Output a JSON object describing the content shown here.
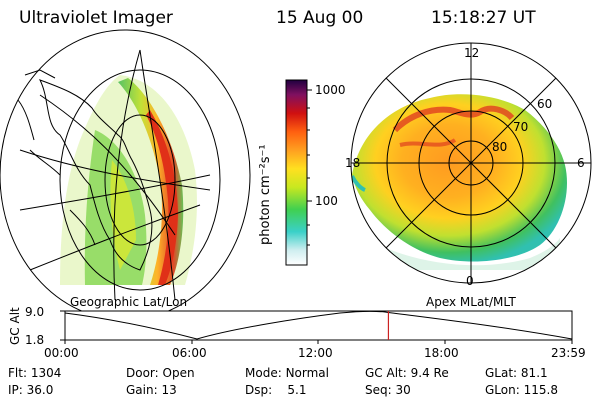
{
  "header": {
    "instrument": "Ultraviolet Imager",
    "date": "15 Aug 00",
    "time": "15:18:27 UT"
  },
  "colorbar": {
    "label": "photon cm⁻²s⁻¹",
    "ticks": [
      "1000",
      "100"
    ]
  },
  "left_panel": {
    "caption": "Geographic Lat/Lon"
  },
  "right_panel": {
    "caption": "Apex MLat/MLT",
    "mlt_labels": [
      "12",
      "18",
      "6",
      "0"
    ],
    "lat_labels": [
      "60",
      "70",
      "80"
    ]
  },
  "altitude_plot": {
    "ylabel": "GC Alt",
    "yticks": [
      "9.0",
      "1.8"
    ],
    "xticks": [
      "00:00",
      "06:00",
      "12:00",
      "18:00",
      "23:59"
    ],
    "current_time_hours": 15.31
  },
  "status": {
    "row1": [
      {
        "label": "Flt:",
        "value": "1304"
      },
      {
        "label": "Door:",
        "value": "Open"
      },
      {
        "label": "Mode:",
        "value": "Normal"
      },
      {
        "label": "GC Alt:",
        "value": "9.4 Re"
      },
      {
        "label": "GLat:",
        "value": "81.1"
      }
    ],
    "row2": [
      {
        "label": "IP:",
        "value": "36.0"
      },
      {
        "label": "Gain:",
        "value": "13"
      },
      {
        "label": "Dsp:",
        "value": "5.1"
      },
      {
        "label": "Seq:",
        "value": "30"
      },
      {
        "label": "GLon:",
        "value": "115.8"
      }
    ]
  },
  "colors": {
    "marker": "#cc2222",
    "aurora_low": "#7fd04a",
    "aurora_mid": "#f0a020",
    "aurora_high": "#e0301a"
  }
}
